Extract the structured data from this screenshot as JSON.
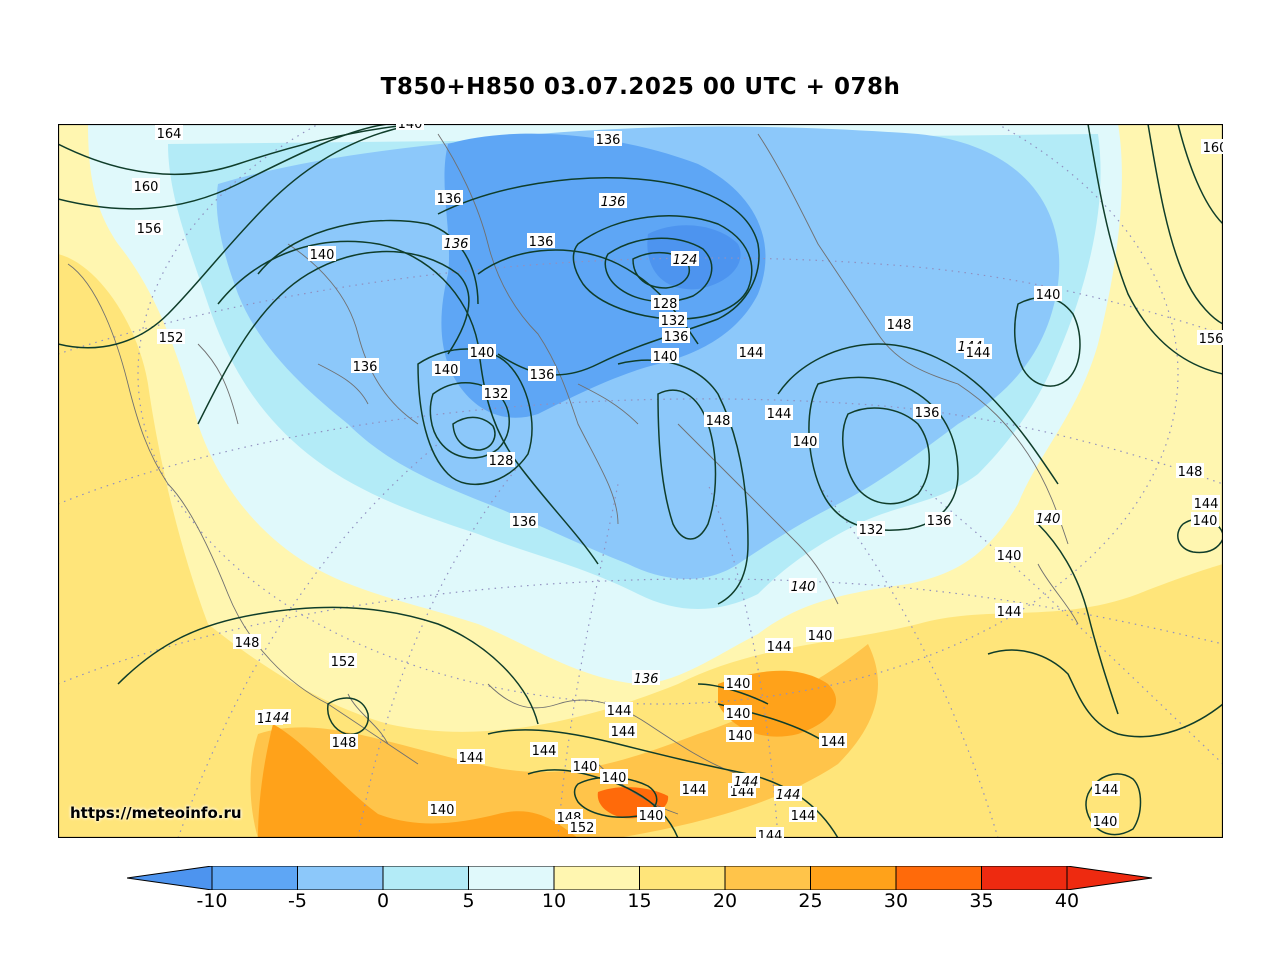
{
  "title": "T850+H850 03.07.2025 00 UTC + 078h",
  "credit": "https://meteoinfo.ru",
  "colorbar": {
    "ticks": [
      "-10",
      "-5",
      "0",
      "5",
      "10",
      "15",
      "20",
      "25",
      "30",
      "35",
      "40"
    ],
    "colors": [
      "#4d94ef",
      "#5ea6f5",
      "#8cc8fa",
      "#b3ebf7",
      "#e0f9fb",
      "#fff6b0",
      "#ffe57a",
      "#ffc44a",
      "#ffa21a",
      "#ff6a0a",
      "#ee2a10"
    ]
  },
  "isoline_labels": [
    {
      "text": "164"
    },
    {
      "text": "160"
    },
    {
      "text": "156"
    },
    {
      "text": "152"
    },
    {
      "text": "140"
    },
    {
      "text": "136"
    },
    {
      "text": "136"
    },
    {
      "text": "140"
    },
    {
      "text": "136"
    },
    {
      "text": "136"
    },
    {
      "text": "136"
    },
    {
      "text": "136"
    },
    {
      "text": "124"
    },
    {
      "text": "128"
    },
    {
      "text": "132"
    },
    {
      "text": "136"
    },
    {
      "text": "140"
    },
    {
      "text": "140"
    },
    {
      "text": "140"
    },
    {
      "text": "136"
    },
    {
      "text": "132"
    },
    {
      "text": "128"
    },
    {
      "text": "136"
    },
    {
      "text": "144"
    },
    {
      "text": "148"
    },
    {
      "text": "144"
    },
    {
      "text": "140"
    },
    {
      "text": "148"
    },
    {
      "text": "140"
    },
    {
      "text": "144"
    },
    {
      "text": "144"
    },
    {
      "text": "156"
    },
    {
      "text": "136"
    },
    {
      "text": "132"
    },
    {
      "text": "136"
    },
    {
      "text": "148"
    },
    {
      "text": "144"
    },
    {
      "text": "140"
    },
    {
      "text": "140"
    },
    {
      "text": "140"
    },
    {
      "text": "144"
    },
    {
      "text": "140"
    },
    {
      "text": "144"
    },
    {
      "text": "140"
    },
    {
      "text": "148"
    },
    {
      "text": "152"
    },
    {
      "text": "148"
    },
    {
      "text": "144"
    },
    {
      "text": "144"
    },
    {
      "text": "136"
    },
    {
      "text": "144"
    },
    {
      "text": "144"
    },
    {
      "text": "140"
    },
    {
      "text": "140"
    },
    {
      "text": "140"
    },
    {
      "text": "140"
    },
    {
      "text": "144"
    },
    {
      "text": "140"
    },
    {
      "text": "140"
    },
    {
      "text": "144"
    },
    {
      "text": "144"
    },
    {
      "text": "144"
    },
    {
      "text": "144"
    },
    {
      "text": "144"
    },
    {
      "text": "144"
    },
    {
      "text": "148"
    },
    {
      "text": "152"
    },
    {
      "text": "140"
    },
    {
      "text": "144"
    },
    {
      "text": "140"
    },
    {
      "text": "144"
    },
    {
      "text": "160"
    },
    {
      "text": "140"
    },
    {
      "text": "144"
    }
  ]
}
